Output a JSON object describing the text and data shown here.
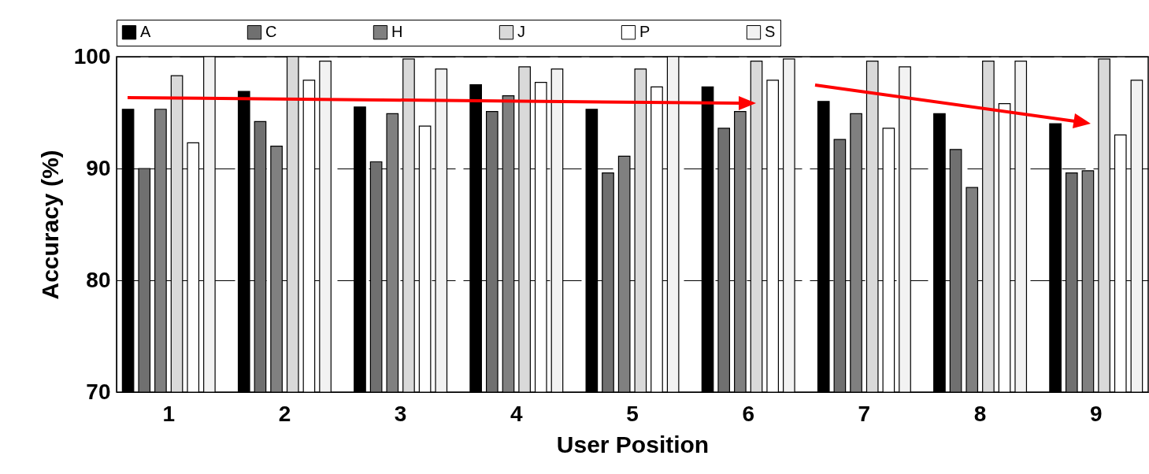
{
  "chart_data": {
    "type": "bar",
    "xlabel": "User Position",
    "ylabel": "Accuracy (%)",
    "categories": [
      "1",
      "2",
      "3",
      "4",
      "5",
      "6",
      "7",
      "8",
      "9"
    ],
    "series": [
      {
        "name": "A",
        "color": "#000000",
        "values": [
          95.3,
          96.9,
          95.5,
          97.5,
          95.3,
          97.3,
          96.0,
          94.9,
          94.0
        ]
      },
      {
        "name": "C",
        "color": "#707070",
        "values": [
          90.0,
          94.2,
          90.6,
          95.1,
          89.6,
          93.6,
          92.6,
          91.7,
          89.6
        ]
      },
      {
        "name": "H",
        "color": "#808080",
        "values": [
          95.3,
          92.0,
          94.9,
          96.5,
          91.1,
          95.1,
          94.9,
          88.3,
          89.8
        ]
      },
      {
        "name": "J",
        "color": "#d9d9d9",
        "values": [
          98.3,
          100,
          99.8,
          99.1,
          98.9,
          99.6,
          99.6,
          99.6,
          99.8
        ]
      },
      {
        "name": "P",
        "color": "#ffffff",
        "values": [
          92.3,
          97.9,
          93.8,
          97.7,
          97.3,
          97.9,
          93.6,
          95.8,
          93.0
        ]
      },
      {
        "name": "S",
        "color": "#f2f2f2",
        "values": [
          100,
          99.6,
          98.9,
          98.9,
          100,
          99.8,
          99.1,
          99.6,
          97.9
        ]
      }
    ],
    "ylim": [
      70,
      100
    ],
    "yticks": [
      70,
      80,
      90,
      100
    ],
    "grid": "y",
    "legend": "top"
  }
}
